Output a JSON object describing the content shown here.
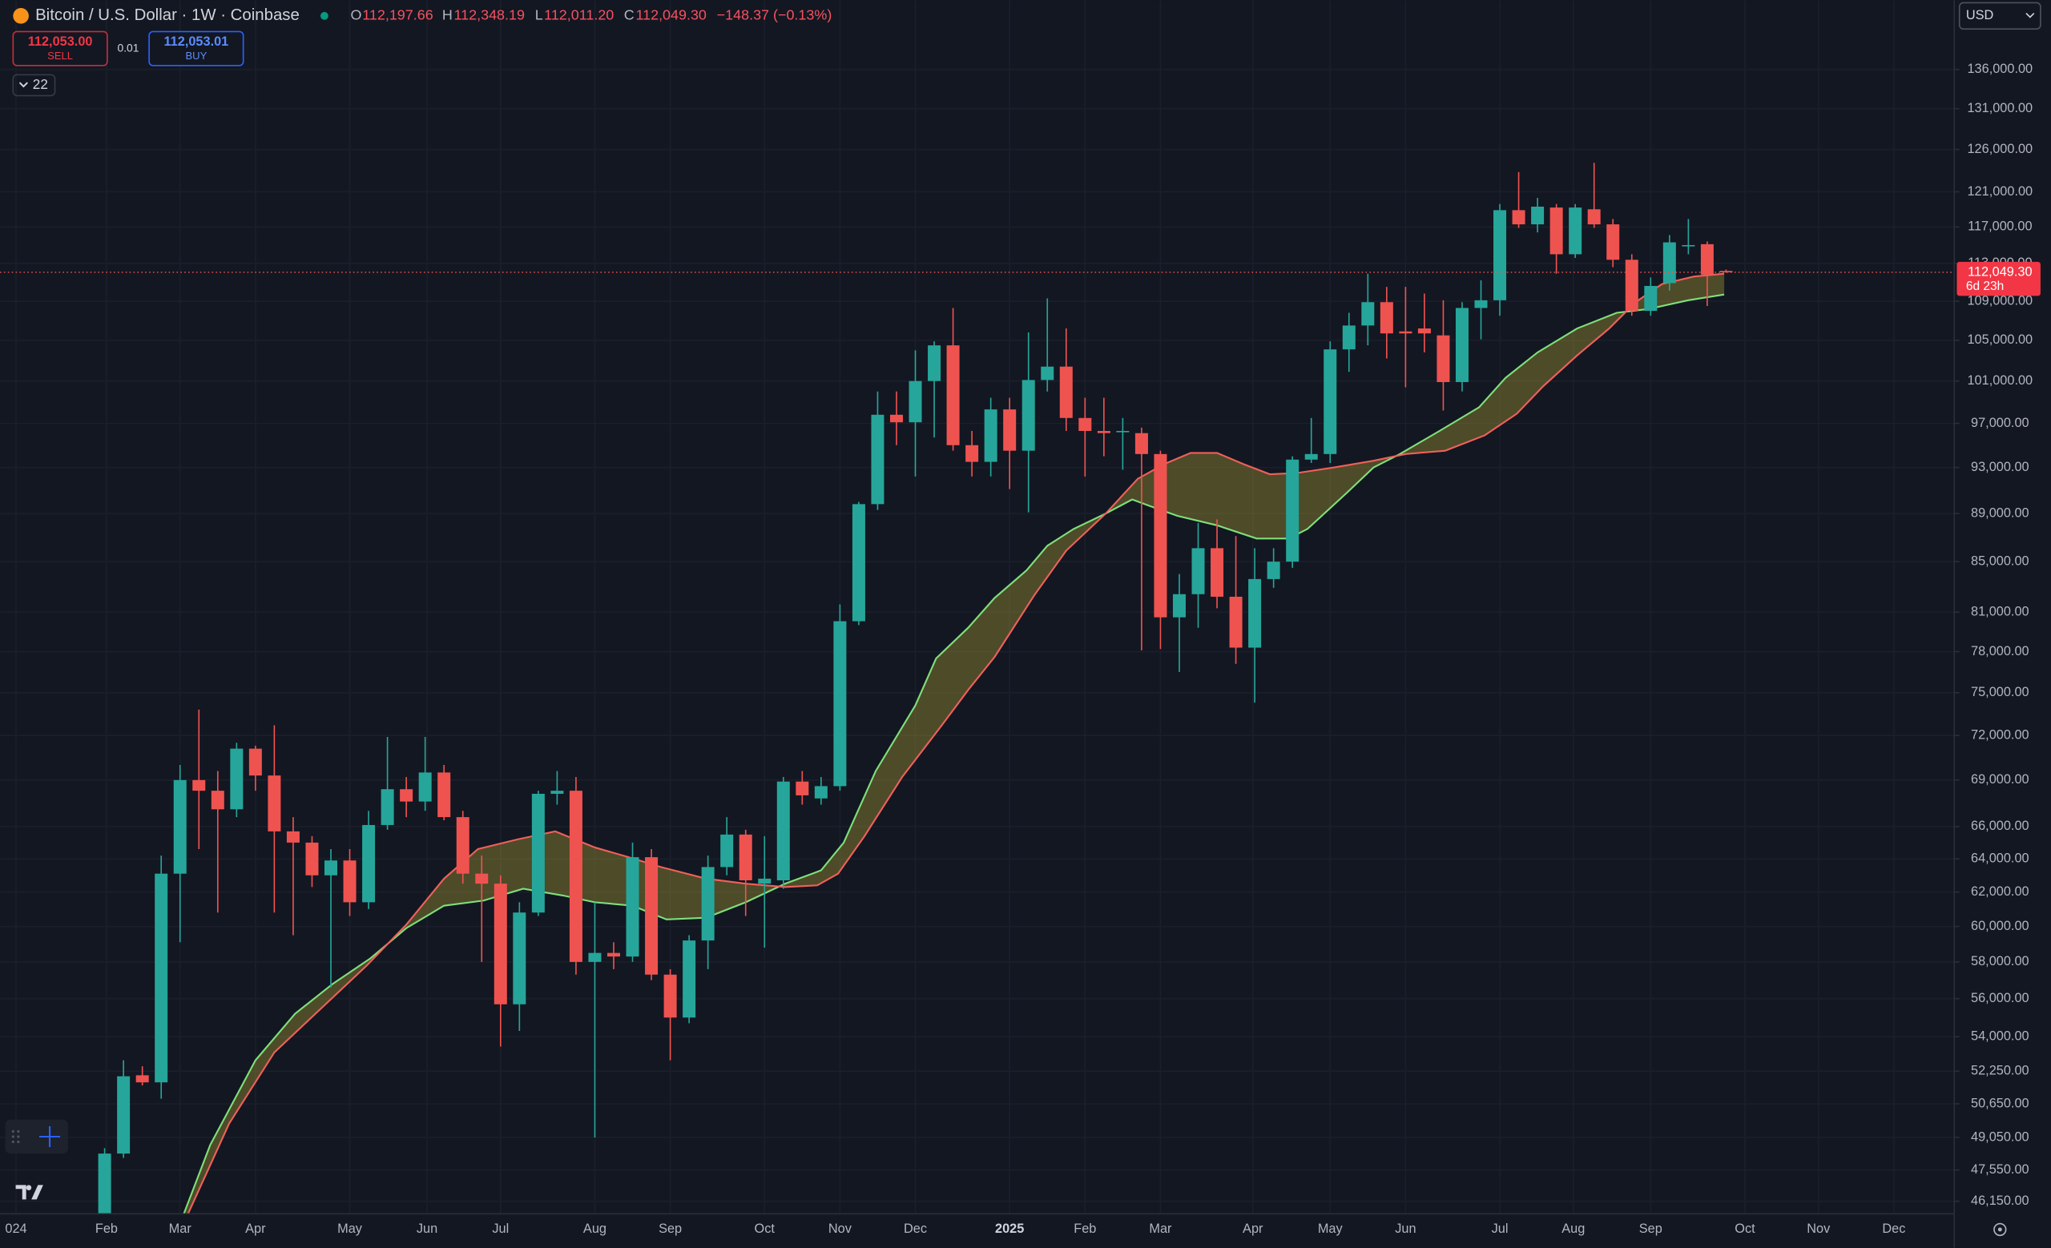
{
  "ui": {
    "symbol": "Bitcoin / U.S. Dollar · 1W · Coinbase",
    "ohlc": [
      {
        "key": "O",
        "value": "112,197.66"
      },
      {
        "key": "H",
        "value": "112,348.19"
      },
      {
        "key": "L",
        "value": "112,011.20"
      },
      {
        "key": "C",
        "value": "112,049.30"
      }
    ],
    "change": "−148.37 (−0.13%)",
    "sell_price": "112,053.00",
    "sell": "SELL",
    "spread": "0.01",
    "buy_price": "112,053.01",
    "buy": "BUY",
    "indicators": "22",
    "currency": "USD",
    "last_price_label": "112,049.30",
    "countdown": "6d 23h"
  },
  "chart_data": {
    "type": "candlestick",
    "log_scale": true,
    "grid": true,
    "up_color": "#26a69a",
    "down_color": "#ef5350",
    "x": [
      0,
      1,
      2,
      3,
      4,
      5,
      6,
      7,
      8,
      9,
      10,
      11,
      12,
      13,
      14,
      15,
      16,
      17,
      18,
      19,
      20,
      21,
      22,
      23,
      24,
      25,
      26,
      27,
      28,
      29,
      30,
      31,
      32,
      33,
      34,
      35,
      36,
      37,
      38,
      39,
      40,
      41,
      42,
      43,
      44,
      45,
      46,
      47,
      48,
      49,
      50,
      51,
      52,
      53,
      54,
      55,
      56,
      57,
      58,
      59,
      60,
      61,
      62,
      63,
      64,
      65,
      66,
      67,
      68,
      69,
      70,
      71,
      72,
      73,
      74,
      75,
      76,
      77,
      78,
      79,
      80,
      81,
      82,
      83,
      84,
      85,
      86
    ],
    "open": [
      44300,
      48300,
      52050,
      51700,
      63100,
      69000,
      68300,
      67100,
      71100,
      69300,
      65700,
      65000,
      63000,
      63900,
      61400,
      66100,
      68400,
      67600,
      69500,
      66600,
      63100,
      62500,
      55700,
      60800,
      68100,
      68300,
      58000,
      58500,
      58300,
      64100,
      57300,
      55000,
      59200,
      63500,
      65500,
      62500,
      62700,
      68900,
      67800,
      68600,
      80300,
      89800,
      97800,
      97100,
      101000,
      104500,
      95000,
      93500,
      98300,
      94500,
      101100,
      102400,
      97500,
      96300,
      96200,
      96100,
      94200,
      80600,
      82400,
      86100,
      82200,
      78300,
      83600,
      85000,
      93700,
      94200,
      104100,
      106500,
      108900,
      105900,
      106200,
      105500,
      100900,
      108300,
      109100,
      118900,
      117300,
      119200,
      114000,
      119000,
      117300,
      113400,
      108000,
      110900,
      114900,
      115100,
      112197.66
    ],
    "high": [
      48550,
      52800,
      52500,
      64200,
      70000,
      73800,
      69600,
      71500,
      71300,
      72700,
      66600,
      65400,
      64600,
      64600,
      67000,
      71900,
      69200,
      71900,
      70000,
      67000,
      64200,
      63000,
      61400,
      68300,
      69600,
      69200,
      61400,
      59100,
      65000,
      64600,
      57600,
      59500,
      64200,
      66600,
      65800,
      65400,
      69200,
      69600,
      69200,
      81600,
      90000,
      100000,
      100000,
      104000,
      104900,
      108300,
      96300,
      99400,
      99400,
      105800,
      109300,
      106200,
      99400,
      99400,
      97500,
      96600,
      94500,
      84000,
      88200,
      88500,
      87100,
      86100,
      86100,
      94000,
      97500,
      104900,
      107800,
      111900,
      110500,
      110500,
      109800,
      109100,
      108900,
      111200,
      119600,
      123300,
      120300,
      119600,
      119600,
      124400,
      117900,
      114000,
      111500,
      116100,
      117900,
      115400,
      112348.19
    ],
    "low": [
      44000,
      48100,
      51550,
      50900,
      59100,
      64600,
      60800,
      66600,
      68300,
      60800,
      59500,
      62300,
      56600,
      60600,
      61000,
      65800,
      66600,
      67000,
      66400,
      62500,
      58000,
      53500,
      54300,
      60600,
      67400,
      57300,
      49050,
      57600,
      58000,
      57000,
      52800,
      54700,
      57600,
      63000,
      60600,
      58800,
      62200,
      67400,
      67400,
      68300,
      80000,
      89300,
      95000,
      92200,
      95700,
      94500,
      92200,
      92200,
      91100,
      89100,
      100000,
      96300,
      92200,
      94000,
      92800,
      78100,
      78200,
      76500,
      79800,
      81300,
      77100,
      74300,
      82900,
      84500,
      93400,
      93400,
      101900,
      104500,
      103200,
      100400,
      103800,
      98200,
      100000,
      105100,
      107500,
      116900,
      116400,
      111900,
      113600,
      116900,
      112600,
      107500,
      107500,
      110100,
      114000,
      108500,
      112011.2
    ],
    "close": [
      48300,
      52000,
      51700,
      63100,
      69000,
      68300,
      67100,
      71100,
      69300,
      65700,
      65000,
      63000,
      63900,
      61400,
      66100,
      68400,
      67600,
      69500,
      66600,
      63100,
      62500,
      55700,
      60800,
      68100,
      68300,
      58000,
      58500,
      58300,
      64100,
      57300,
      55000,
      59200,
      63500,
      65500,
      62700,
      62800,
      68900,
      68000,
      68600,
      80300,
      89800,
      97800,
      97100,
      101000,
      104500,
      95000,
      93500,
      98300,
      94500,
      101100,
      102400,
      97500,
      96300,
      96100,
      96300,
      94200,
      80600,
      82400,
      86100,
      82200,
      78300,
      83600,
      85000,
      93700,
      94200,
      104100,
      106500,
      108900,
      105700,
      105700,
      105700,
      100900,
      108300,
      109100,
      118900,
      117300,
      119300,
      114000,
      119200,
      117300,
      113400,
      108000,
      110600,
      115300,
      115000,
      111800,
      112049.3
    ],
    "lines": [
      {
        "color": "#7ee07a",
        "x": [
          4.2,
          5.6,
          8.0,
          10.1,
          12.1,
          14.1,
          16.0,
          18.0,
          20.1,
          22.2,
          24.3,
          26.0,
          28.0,
          29.8,
          31.9,
          34.0,
          36.1,
          38.0,
          39.2,
          40.9,
          43.0,
          44.1,
          45.8,
          47.2,
          48.9,
          50.0,
          51.4,
          53.1,
          54.5,
          55.5,
          56.9,
          59.0,
          61.1,
          62.8,
          63.8,
          65.9,
          67.3,
          68.7,
          70.8,
          72.9,
          74.3,
          76.0,
          78.1,
          80.2,
          81.9,
          84.0,
          85.9
        ],
        "values": [
          45600,
          48700,
          52800,
          55200,
          56800,
          58200,
          59900,
          61200,
          61500,
          62200,
          61800,
          61400,
          61200,
          60400,
          60500,
          61400,
          62500,
          63300,
          65000,
          69600,
          74100,
          77500,
          79800,
          82100,
          84300,
          86300,
          87700,
          89000,
          90200,
          89600,
          88800,
          88000,
          86900,
          86900,
          87700,
          90800,
          93000,
          94200,
          96300,
          98500,
          101300,
          103800,
          106200,
          107800,
          108200,
          109100,
          109700
        ]
      },
      {
        "color": "#f0605a",
        "x": [
          4.2,
          6.6,
          9.0,
          11.5,
          13.9,
          16.0,
          18.0,
          19.8,
          21.9,
          23.9,
          26.0,
          27.8,
          29.5,
          31.9,
          34.0,
          36.1,
          37.8,
          38.9,
          40.3,
          42.3,
          44.4,
          45.8,
          47.2,
          49.3,
          51.0,
          53.1,
          54.8,
          56.2,
          57.6,
          59.0,
          60.4,
          61.8,
          63.2,
          65.2,
          67.3,
          69.0,
          71.1,
          73.2,
          74.9,
          76.3,
          78.1,
          79.8,
          81.2,
          82.6,
          84.3,
          85.9
        ],
        "values": [
          45200,
          49700,
          53200,
          55500,
          57800,
          60100,
          62800,
          64600,
          65200,
          65700,
          64700,
          64100,
          63500,
          62800,
          62500,
          62300,
          62400,
          63100,
          65400,
          69200,
          72700,
          75200,
          77600,
          82300,
          85900,
          89000,
          92000,
          93300,
          94300,
          94300,
          93300,
          92400,
          92500,
          93000,
          93600,
          94200,
          94500,
          95900,
          97900,
          100500,
          103500,
          106200,
          108900,
          110800,
          111600,
          111900
        ]
      }
    ],
    "xlim": [
      -5.55,
      98.1
    ],
    "xticks": [
      {
        "value": -4.7,
        "label": "024"
      },
      {
        "value": 0.1,
        "label": "Feb"
      },
      {
        "value": 4.0,
        "label": "Mar"
      },
      {
        "value": 8.0,
        "label": "Apr"
      },
      {
        "value": 13.0,
        "label": "May"
      },
      {
        "value": 17.1,
        "label": "Jun"
      },
      {
        "value": 21.0,
        "label": "Jul"
      },
      {
        "value": 26.0,
        "label": "Aug"
      },
      {
        "value": 30.0,
        "label": "Sep"
      },
      {
        "value": 35.0,
        "label": "Oct"
      },
      {
        "value": 39.0,
        "label": "Nov"
      },
      {
        "value": 43.0,
        "label": "Dec"
      },
      {
        "value": 48.0,
        "label": "2025"
      },
      {
        "value": 52.0,
        "label": "Feb"
      },
      {
        "value": 56.0,
        "label": "Mar"
      },
      {
        "value": 60.9,
        "label": "Apr"
      },
      {
        "value": 65.0,
        "label": "May"
      },
      {
        "value": 69.0,
        "label": "Jun"
      },
      {
        "value": 74.0,
        "label": "Jul"
      },
      {
        "value": 77.9,
        "label": "Aug"
      },
      {
        "value": 82.0,
        "label": "Sep"
      },
      {
        "value": 87.0,
        "label": "Oct"
      },
      {
        "value": 90.9,
        "label": "Nov"
      },
      {
        "value": 94.9,
        "label": "Dec"
      }
    ],
    "ylim": [
      45600,
      145300
    ],
    "yticks": [
      {
        "value": 136000,
        "label": "136,000.00"
      },
      {
        "value": 131000,
        "label": "131,000.00"
      },
      {
        "value": 126000,
        "label": "126,000.00"
      },
      {
        "value": 121000,
        "label": "121,000.00"
      },
      {
        "value": 117000,
        "label": "117,000.00"
      },
      {
        "value": 113000,
        "label": "113,000.00"
      },
      {
        "value": 109000,
        "label": "109,000.00"
      },
      {
        "value": 105000,
        "label": "105,000.00"
      },
      {
        "value": 101000,
        "label": "101,000.00"
      },
      {
        "value": 97000,
        "label": "97,000.00"
      },
      {
        "value": 93000,
        "label": "93,000.00"
      },
      {
        "value": 89000,
        "label": "89,000.00"
      },
      {
        "value": 85000,
        "label": "85,000.00"
      },
      {
        "value": 81000,
        "label": "81,000.00"
      },
      {
        "value": 78000,
        "label": "78,000.00"
      },
      {
        "value": 75000,
        "label": "75,000.00"
      },
      {
        "value": 72000,
        "label": "72,000.00"
      },
      {
        "value": 69000,
        "label": "69,000.00"
      },
      {
        "value": 66000,
        "label": "66,000.00"
      },
      {
        "value": 64000,
        "label": "64,000.00"
      },
      {
        "value": 62000,
        "label": "62,000.00"
      },
      {
        "value": 60000,
        "label": "60,000.00"
      },
      {
        "value": 58000,
        "label": "58,000.00"
      },
      {
        "value": 56000,
        "label": "56,000.00"
      },
      {
        "value": 54000,
        "label": "54,000.00"
      },
      {
        "value": 52250,
        "label": "52,250.00"
      },
      {
        "value": 50650,
        "label": "50,650.00"
      },
      {
        "value": 49050,
        "label": "49,050.00"
      },
      {
        "value": 47550,
        "label": "47,550.00"
      },
      {
        "value": 46150,
        "label": "46,150.00"
      }
    ]
  }
}
